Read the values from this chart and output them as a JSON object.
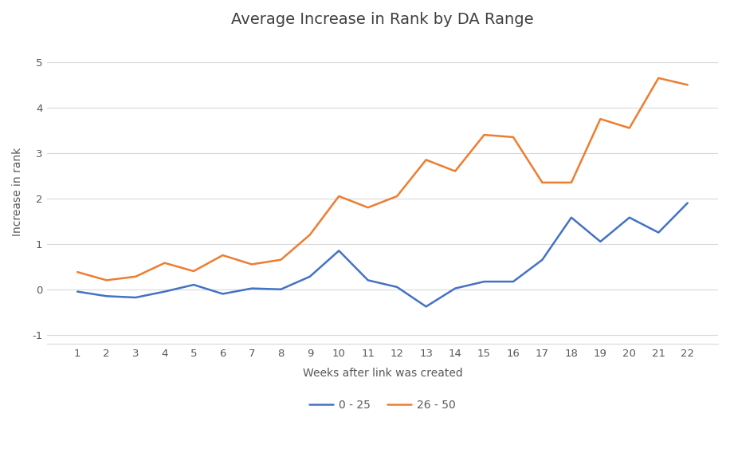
{
  "title": "Average Increase in Rank by DA Range",
  "xlabel": "Weeks after link was created",
  "ylabel": "Increase in rank",
  "weeks": [
    1,
    2,
    3,
    4,
    5,
    6,
    7,
    8,
    9,
    10,
    11,
    12,
    13,
    14,
    15,
    16,
    17,
    18,
    19,
    20,
    21,
    22
  ],
  "series_0_25": [
    -0.05,
    -0.15,
    -0.18,
    -0.05,
    0.1,
    -0.1,
    0.02,
    0.0,
    0.28,
    0.85,
    0.2,
    0.05,
    -0.38,
    0.02,
    0.17,
    0.17,
    0.65,
    1.58,
    1.05,
    1.58,
    1.25,
    1.9
  ],
  "series_26_50": [
    0.38,
    0.2,
    0.28,
    0.58,
    0.4,
    0.75,
    0.55,
    0.65,
    1.2,
    2.05,
    1.8,
    2.05,
    2.85,
    2.6,
    3.4,
    3.35,
    2.35,
    2.35,
    3.75,
    3.55,
    4.65,
    4.5
  ],
  "color_0_25": "#4472C4",
  "color_26_50": "#ED7D31",
  "label_0_25": "0 - 25",
  "label_26_50": "26 - 50",
  "ylim": [
    -1.2,
    5.5
  ],
  "yticks": [
    -1,
    0,
    1,
    2,
    3,
    4,
    5
  ],
  "background_color": "#ffffff",
  "grid_color": "#d9d9d9",
  "title_fontsize": 14,
  "axis_label_fontsize": 10,
  "tick_fontsize": 9.5,
  "legend_fontsize": 10,
  "linewidth": 1.8
}
